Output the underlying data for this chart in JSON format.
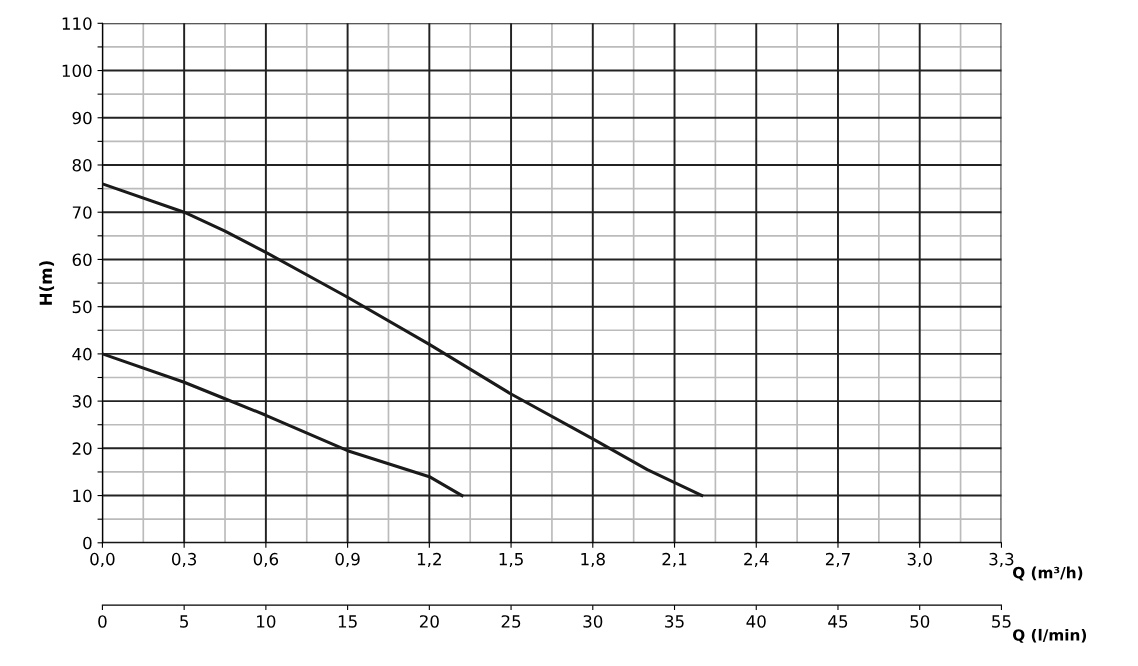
{
  "chart_data": {
    "type": "line",
    "ylabel": "H(m)",
    "xlabel": "Q (m³/h)",
    "x2label": "Q (l/min)",
    "series": [
      {
        "color": "#1a1a1a",
        "x": [
          0,
          0.3,
          0.45,
          0.6,
          0.9,
          1.2,
          1.5,
          1.8,
          2.0,
          2.2
        ],
        "values": [
          76,
          70,
          66,
          61.5,
          52,
          42,
          31.5,
          22,
          15.5,
          10
        ]
      },
      {
        "color": "#1a1a1a",
        "x": [
          0,
          0.3,
          0.45,
          0.6,
          0.9,
          1.2,
          1.32
        ],
        "values": [
          40,
          34,
          30.5,
          27,
          19.5,
          14,
          10
        ]
      }
    ],
    "xlim": [
      0,
      3.3
    ],
    "xticks": [
      {
        "value": 0,
        "label": "0,0"
      },
      {
        "value": 0.15,
        "label": null
      },
      {
        "value": 0.3,
        "label": "0,3"
      },
      {
        "value": 0.45,
        "label": null
      },
      {
        "value": 0.6,
        "label": "0,6"
      },
      {
        "value": 0.75,
        "label": null
      },
      {
        "value": 0.9,
        "label": "0,9"
      },
      {
        "value": 1.05,
        "label": null
      },
      {
        "value": 1.2,
        "label": "1,2"
      },
      {
        "value": 1.35,
        "label": null
      },
      {
        "value": 1.5,
        "label": "1,5"
      },
      {
        "value": 1.65,
        "label": null
      },
      {
        "value": 1.8,
        "label": "1,8"
      },
      {
        "value": 1.95,
        "label": null
      },
      {
        "value": 2.1,
        "label": "2,1"
      },
      {
        "value": 2.25,
        "label": null
      },
      {
        "value": 2.4,
        "label": "2,4"
      },
      {
        "value": 2.55,
        "label": null
      },
      {
        "value": 2.7,
        "label": "2,7"
      },
      {
        "value": 2.85,
        "label": null
      },
      {
        "value": 3.0,
        "label": "3,0"
      },
      {
        "value": 3.15,
        "label": null
      },
      {
        "value": 3.3,
        "label": "3,3"
      }
    ],
    "ylim": [
      0,
      110
    ],
    "yticks": [
      0,
      {
        "value": 5,
        "label": null
      },
      10,
      {
        "value": 15,
        "label": null
      },
      20,
      {
        "value": 25,
        "label": null
      },
      30,
      {
        "value": 35,
        "label": null
      },
      40,
      {
        "value": 45,
        "label": null
      },
      50,
      {
        "value": 55,
        "label": null
      },
      60,
      {
        "value": 65,
        "label": null
      },
      70,
      {
        "value": 75,
        "label": null
      },
      80,
      {
        "value": 85,
        "label": null
      },
      90,
      {
        "value": 95,
        "label": null
      },
      100,
      {
        "value": 105,
        "label": null
      },
      110
    ],
    "x2lim": [
      0,
      55
    ],
    "x2ticks": [
      0,
      5,
      10,
      15,
      20,
      25,
      30,
      35,
      40,
      45,
      50,
      55
    ],
    "grid": true,
    "legend": false,
    "marker": "none",
    "line_style": "solid"
  }
}
